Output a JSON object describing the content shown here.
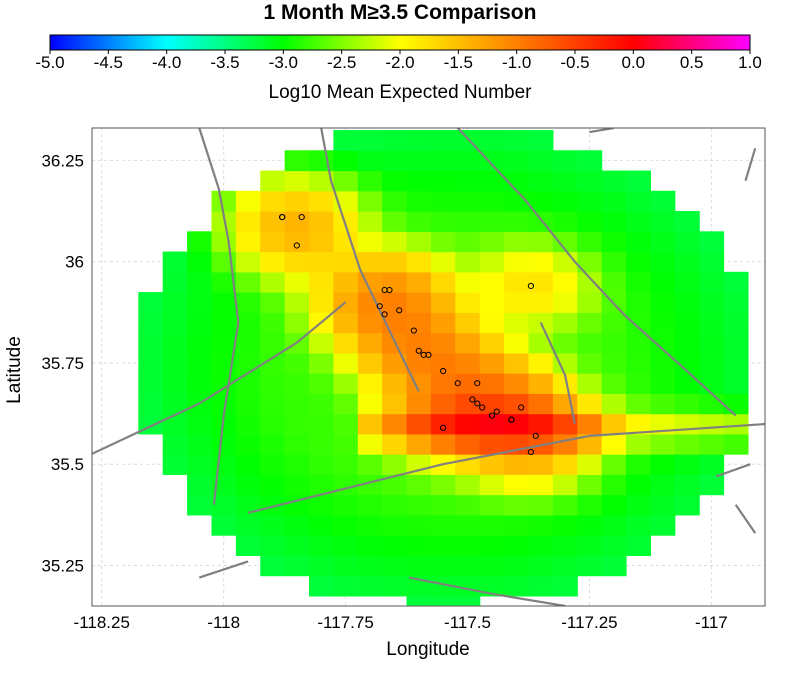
{
  "chart_data": {
    "type": "heatmap",
    "title": "1 Month M≥3.5 Comparison",
    "colorbar": {
      "label": "Log10 Mean Expected Number",
      "ticks": [
        "-5.0",
        "-4.5",
        "-4.0",
        "-3.5",
        "-3.0",
        "-2.5",
        "-2.0",
        "-1.5",
        "-1.0",
        "-0.5",
        "0.0",
        "0.5",
        "1.0"
      ],
      "range": [
        -5.0,
        1.0
      ],
      "colors": [
        "#0000ff",
        "#00ffff",
        "#00ff00",
        "#ffff00",
        "#ff8000",
        "#ff0000",
        "#ff00ff"
      ]
    },
    "xlabel": "Longitude",
    "ylabel": "Latitude",
    "x_ticks": [
      "-118.25",
      "-118",
      "-117.75",
      "-117.5",
      "-117.25",
      "-117"
    ],
    "y_ticks": [
      "36.25",
      "36",
      "35.75",
      "35.5",
      "35.25"
    ],
    "xlim": [
      -118.27,
      -116.89
    ],
    "ylim": [
      35.15,
      36.33
    ],
    "grid": true,
    "cell_size_deg": 0.05,
    "field": {
      "center_lon": -117.54,
      "center_lat": 35.74,
      "extent_lon": 0.59,
      "extent_lat": 0.55
    },
    "earthquakes": [
      {
        "lon": -117.88,
        "lat": 36.11
      },
      {
        "lon": -117.88,
        "lat": 36.11
      },
      {
        "lon": -117.84,
        "lat": 36.11
      },
      {
        "lon": -117.85,
        "lat": 36.04
      },
      {
        "lon": -117.67,
        "lat": 35.93
      },
      {
        "lon": -117.66,
        "lat": 35.93
      },
      {
        "lon": -117.68,
        "lat": 35.89
      },
      {
        "lon": -117.64,
        "lat": 35.88
      },
      {
        "lon": -117.67,
        "lat": 35.87
      },
      {
        "lon": -117.61,
        "lat": 35.83
      },
      {
        "lon": -117.6,
        "lat": 35.78
      },
      {
        "lon": -117.59,
        "lat": 35.77
      },
      {
        "lon": -117.58,
        "lat": 35.77
      },
      {
        "lon": -117.55,
        "lat": 35.73
      },
      {
        "lon": -117.52,
        "lat": 35.7
      },
      {
        "lon": -117.48,
        "lat": 35.7
      },
      {
        "lon": -117.49,
        "lat": 35.66
      },
      {
        "lon": -117.48,
        "lat": 35.65
      },
      {
        "lon": -117.47,
        "lat": 35.64
      },
      {
        "lon": -117.45,
        "lat": 35.62
      },
      {
        "lon": -117.44,
        "lat": 35.63
      },
      {
        "lon": -117.41,
        "lat": 35.61
      },
      {
        "lon": -117.41,
        "lat": 35.61
      },
      {
        "lon": -117.39,
        "lat": 35.64
      },
      {
        "lon": -117.55,
        "lat": 35.59
      },
      {
        "lon": -117.36,
        "lat": 35.57
      },
      {
        "lon": -117.37,
        "lat": 35.53
      },
      {
        "lon": -117.37,
        "lat": 35.94
      }
    ],
    "faults": [
      [
        [
          -118.28,
          35.52
        ],
        [
          -118.05,
          35.65
        ],
        [
          -117.85,
          35.8
        ],
        [
          -117.75,
          35.9
        ]
      ],
      [
        [
          -117.95,
          35.38
        ],
        [
          -117.55,
          35.5
        ],
        [
          -117.25,
          35.57
        ],
        [
          -116.88,
          35.6
        ]
      ],
      [
        [
          -118.02,
          35.4
        ],
        [
          -118.0,
          35.62
        ],
        [
          -117.97,
          35.85
        ],
        [
          -117.99,
          36.05
        ],
        [
          -118.01,
          36.18
        ],
        [
          -118.05,
          36.33
        ]
      ],
      [
        [
          -117.8,
          36.33
        ],
        [
          -117.78,
          36.2
        ],
        [
          -117.72,
          35.98
        ],
        [
          -117.68,
          35.88
        ],
        [
          -117.6,
          35.68
        ]
      ],
      [
        [
          -117.52,
          36.33
        ],
        [
          -117.38,
          36.15
        ],
        [
          -117.28,
          36.0
        ],
        [
          -117.18,
          35.87
        ],
        [
          -117.05,
          35.73
        ],
        [
          -116.95,
          35.62
        ]
      ],
      [
        [
          -117.35,
          35.85
        ],
        [
          -117.3,
          35.72
        ],
        [
          -117.28,
          35.6
        ]
      ],
      [
        [
          -117.62,
          35.22
        ],
        [
          -117.45,
          35.18
        ],
        [
          -117.3,
          35.15
        ]
      ],
      [
        [
          -116.99,
          35.47
        ],
        [
          -116.92,
          35.5
        ]
      ],
      [
        [
          -116.95,
          35.4
        ],
        [
          -116.91,
          35.33
        ]
      ],
      [
        [
          -118.05,
          35.22
        ],
        [
          -117.95,
          35.26
        ]
      ],
      [
        [
          -117.25,
          36.32
        ],
        [
          -117.2,
          36.33
        ]
      ],
      [
        [
          -116.93,
          36.2
        ],
        [
          -116.91,
          36.28
        ]
      ]
    ]
  }
}
